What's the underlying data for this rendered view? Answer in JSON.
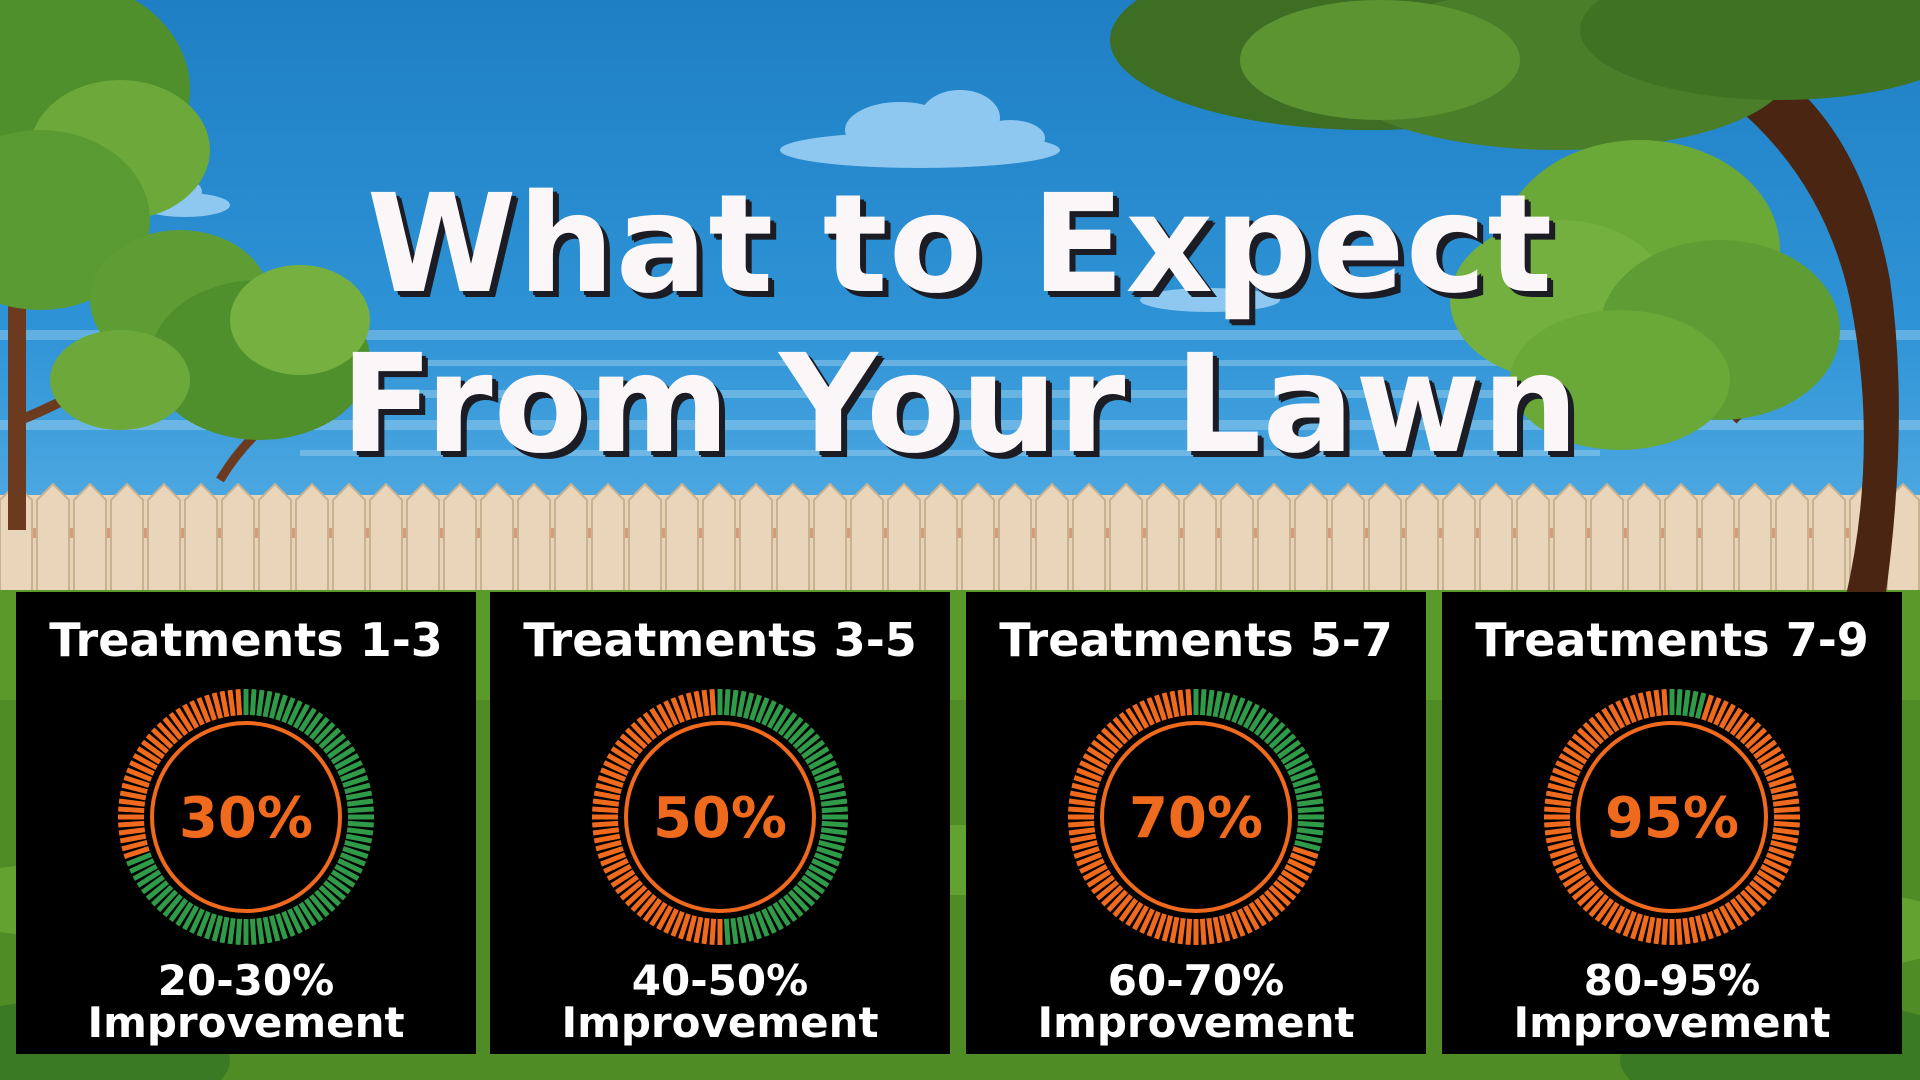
{
  "title": {
    "line1": "What to Expect",
    "line2": "From Your Lawn"
  },
  "colors": {
    "panel_bg": "#000000",
    "progress_orange": "#f06a1e",
    "progress_green": "#2f9a48",
    "title_text": "#fbf6f8",
    "sky": "#2e93d6"
  },
  "stages": [
    {
      "label": "Treatments  1-3",
      "value_text": "30%",
      "value": 30,
      "caption_line1": "20-30%",
      "caption_line2": "Improvement"
    },
    {
      "label": "Treatments  3-5",
      "value_text": "50%",
      "value": 50,
      "caption_line1": "40-50%",
      "caption_line2": "Improvement"
    },
    {
      "label": "Treatments  5-7",
      "value_text": "70%",
      "value": 70,
      "caption_line1": "60-70%",
      "caption_line2": "Improvement"
    },
    {
      "label": "Treatments  7-9",
      "value_text": "95%",
      "value": 95,
      "caption_line1": "80-95%",
      "caption_line2": "Improvement"
    }
  ]
}
